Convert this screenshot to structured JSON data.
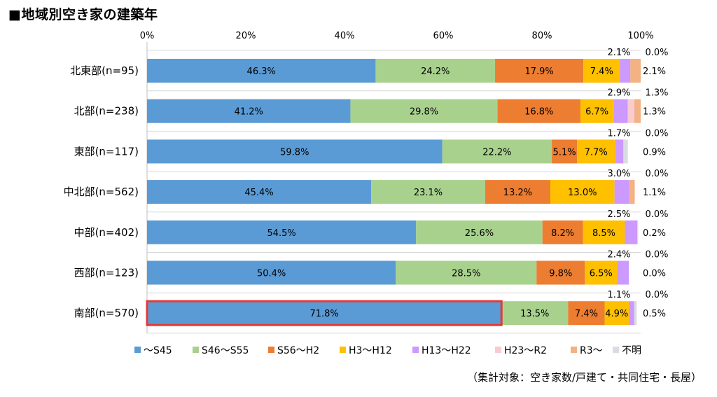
{
  "title": "■地域別空き家の建築年",
  "note": "（集計対象：空き家数/戸建て・共同住宅・長屋）",
  "chart_data": {
    "type": "bar",
    "stacked": true,
    "orientation": "horizontal",
    "x_ticks": [
      "0%",
      "20%",
      "40%",
      "60%",
      "80%",
      "100%"
    ],
    "xlim": [
      0,
      100
    ],
    "grid": false,
    "legend_position": "bottom",
    "categories": [
      "北東部(n=95)",
      "北部(n=238)",
      "東部(n=117)",
      "中北部(n=562)",
      "中部(n=402)",
      "西部(n=123)",
      "南部(n=570)"
    ],
    "highlight": {
      "category_index": 6,
      "series_index": 0,
      "color": "#e53935"
    },
    "series": [
      {
        "name": "～S45",
        "color": "#5b9bd5",
        "values": [
          46.3,
          41.2,
          59.8,
          45.4,
          54.5,
          50.4,
          71.8
        ]
      },
      {
        "name": "S46～S55",
        "color": "#a9d18e",
        "values": [
          24.2,
          29.8,
          22.2,
          23.1,
          25.6,
          28.5,
          13.5
        ]
      },
      {
        "name": "S56～H2",
        "color": "#ed7d31",
        "values": [
          17.9,
          16.8,
          5.1,
          13.2,
          8.2,
          9.8,
          7.4
        ]
      },
      {
        "name": "H3～H12",
        "color": "#ffc000",
        "values": [
          7.4,
          6.7,
          7.7,
          13.0,
          8.5,
          6.5,
          4.9
        ]
      },
      {
        "name": "H13～H22",
        "color": "#cc99ff",
        "values": [
          2.1,
          2.9,
          1.7,
          3.0,
          2.5,
          2.4,
          1.1
        ]
      },
      {
        "name": "H23～R2",
        "color": "#f8cbd1",
        "values": [
          0.0,
          1.3,
          0.0,
          0.0,
          0.0,
          0.0,
          0.0
        ]
      },
      {
        "name": "R3～",
        "color": "#f4b183",
        "values": [
          2.1,
          1.3,
          0.0,
          1.1,
          0.0,
          0.0,
          0.0
        ]
      },
      {
        "name": "不明",
        "color": "#d9dde3",
        "values": [
          0.0,
          0.0,
          0.9,
          0.0,
          0.2,
          0.0,
          0.5
        ]
      }
    ],
    "data_labels": [
      {
        "row": 0,
        "series": 0,
        "text": "46.3%"
      },
      {
        "row": 0,
        "series": 1,
        "text": "24.2%"
      },
      {
        "row": 0,
        "series": 2,
        "text": "17.9%"
      },
      {
        "row": 0,
        "series": 3,
        "text": "7.4%"
      },
      {
        "row": 1,
        "series": 0,
        "text": "41.2%"
      },
      {
        "row": 1,
        "series": 1,
        "text": "29.8%"
      },
      {
        "row": 1,
        "series": 2,
        "text": "16.8%"
      },
      {
        "row": 1,
        "series": 3,
        "text": "6.7%"
      },
      {
        "row": 2,
        "series": 0,
        "text": "59.8%"
      },
      {
        "row": 2,
        "series": 1,
        "text": "22.2%"
      },
      {
        "row": 2,
        "series": 2,
        "text": "5.1%"
      },
      {
        "row": 2,
        "series": 3,
        "text": "7.7%"
      },
      {
        "row": 3,
        "series": 0,
        "text": "45.4%"
      },
      {
        "row": 3,
        "series": 1,
        "text": "23.1%"
      },
      {
        "row": 3,
        "series": 2,
        "text": "13.2%"
      },
      {
        "row": 3,
        "series": 3,
        "text": "13.0%"
      },
      {
        "row": 4,
        "series": 0,
        "text": "54.5%"
      },
      {
        "row": 4,
        "series": 1,
        "text": "25.6%"
      },
      {
        "row": 4,
        "series": 2,
        "text": "8.2%"
      },
      {
        "row": 4,
        "series": 3,
        "text": "8.5%"
      },
      {
        "row": 5,
        "series": 0,
        "text": "50.4%"
      },
      {
        "row": 5,
        "series": 1,
        "text": "28.5%"
      },
      {
        "row": 5,
        "series": 2,
        "text": "9.8%"
      },
      {
        "row": 5,
        "series": 3,
        "text": "6.5%"
      },
      {
        "row": 6,
        "series": 0,
        "text": "71.8%"
      },
      {
        "row": 6,
        "series": 1,
        "text": "13.5%"
      },
      {
        "row": 6,
        "series": 2,
        "text": "7.4%"
      },
      {
        "row": 6,
        "series": 3,
        "text": "4.9%"
      }
    ],
    "annotations": [
      {
        "row": 0,
        "above": [
          "2.1%",
          "0.0%"
        ],
        "right": "2.1%"
      },
      {
        "row": 1,
        "above": [
          "2.9%",
          "1.3%"
        ],
        "right": "1.3%"
      },
      {
        "row": 2,
        "above": [
          "1.7%",
          "0.0%"
        ],
        "right": "0.9%"
      },
      {
        "row": 3,
        "above": [
          "3.0%",
          "0.0%"
        ],
        "right": "1.1%"
      },
      {
        "row": 4,
        "above": [
          "2.5%",
          "0.0%"
        ],
        "right": "0.2%"
      },
      {
        "row": 5,
        "above": [
          "2.4%",
          "0.0%"
        ],
        "right": "0.0%"
      },
      {
        "row": 6,
        "above": [
          "1.1%",
          "0.0%"
        ],
        "right": "0.5%"
      }
    ]
  }
}
